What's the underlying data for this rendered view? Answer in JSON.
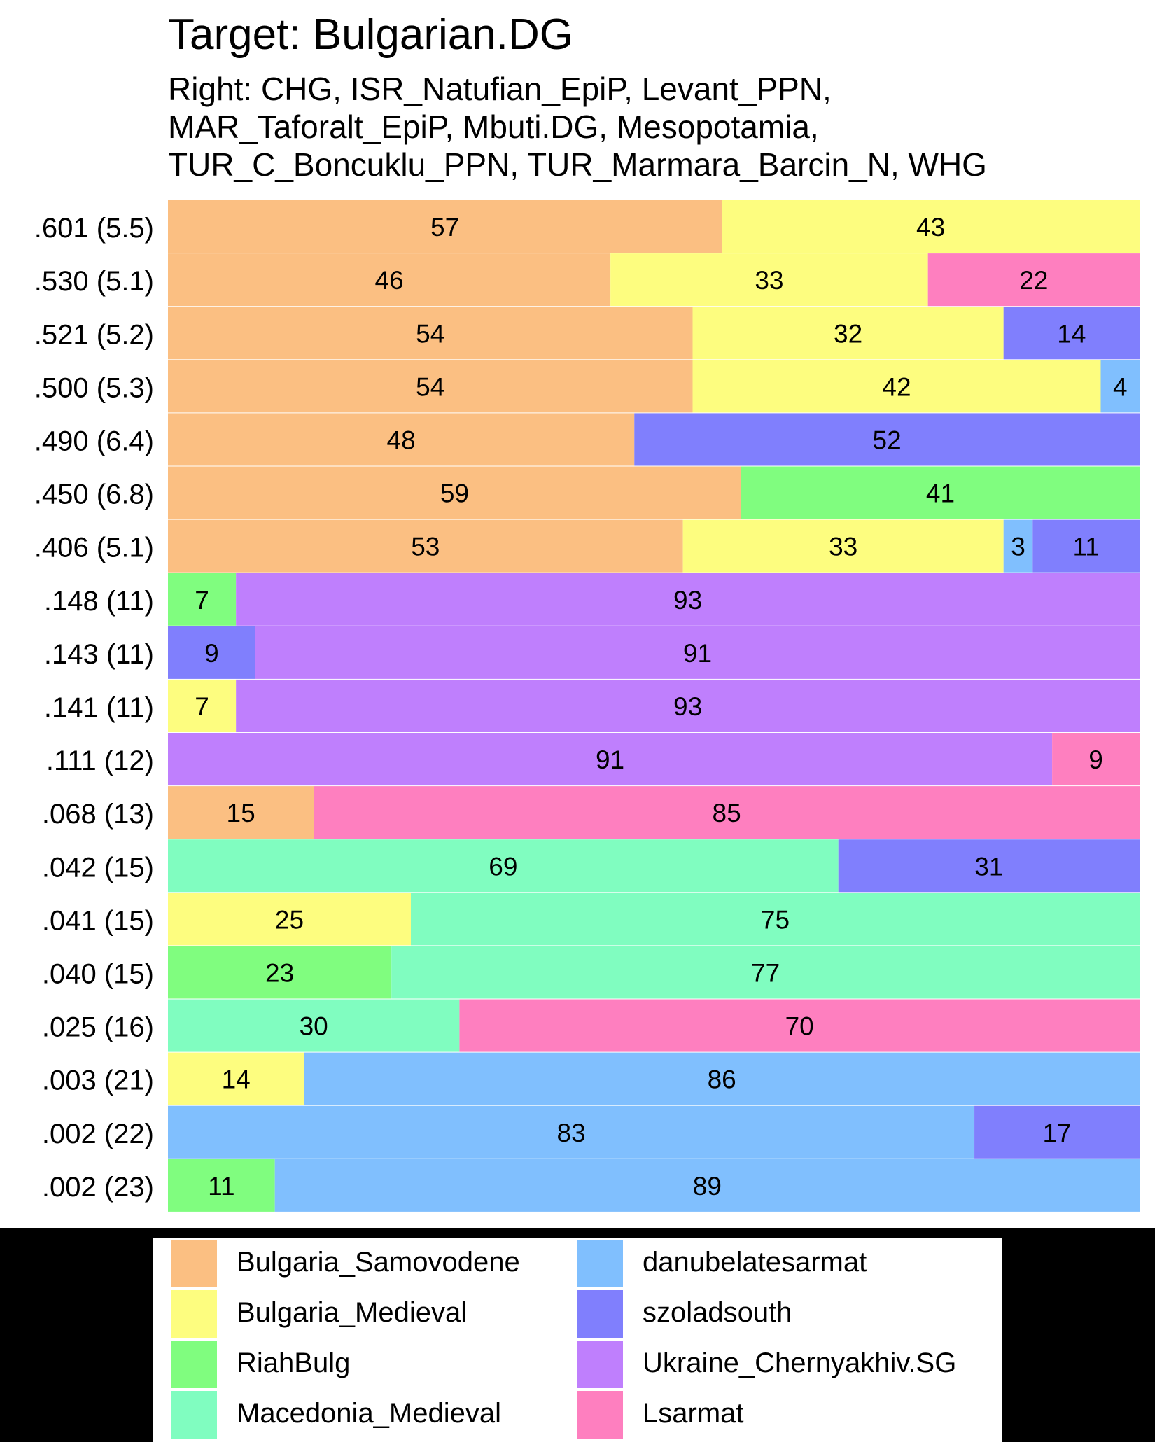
{
  "title": "Target: Bulgarian.DG",
  "subtitle_lines": [
    "Right: CHG, ISR_Natufian_EpiP, Levant_PPN,",
    "MAR_Taforalt_EpiP, Mbuti.DG, Mesopotamia,",
    "TUR_C_Boncuklu_PPN, TUR_Marmara_Barcin_N, WHG"
  ],
  "colors": {
    "Bulgaria_Samovodene": "#fbbf82",
    "Bulgaria_Medieval": "#fdfd7f",
    "RiahBulg": "#80fd7f",
    "Macedonia_Medieval": "#80fdc0",
    "danubelatesarmat": "#80bffe",
    "szoladsouth": "#807ffd",
    "Ukraine_Chernyakhiv.SG": "#bf7ffd",
    "Lsarmat": "#fe7fbf"
  },
  "chart_data": {
    "type": "bar",
    "orientation": "horizontal-stacked-100",
    "title": "Target: Bulgarian.DG",
    "subtitle": "Right: CHG, ISR_Natufian_EpiP, Levant_PPN, MAR_Taforalt_EpiP, Mbuti.DG, Mesopotamia, TUR_C_Boncuklu_PPN, TUR_Marmara_Barcin_N, WHG",
    "legend_position": "bottom",
    "legend": [
      "Bulgaria_Samovodene",
      "Bulgaria_Medieval",
      "RiahBulg",
      "Macedonia_Medieval",
      "danubelatesarmat",
      "szoladsouth",
      "Ukraine_Chernyakhiv.SG",
      "Lsarmat"
    ],
    "rows": [
      {
        "label": ".601 (5.5)",
        "segments": [
          {
            "source": "Bulgaria_Samovodene",
            "value": 57
          },
          {
            "source": "Bulgaria_Medieval",
            "value": 43
          }
        ]
      },
      {
        "label": ".530 (5.1)",
        "segments": [
          {
            "source": "Bulgaria_Samovodene",
            "value": 46
          },
          {
            "source": "Bulgaria_Medieval",
            "value": 33
          },
          {
            "source": "Lsarmat",
            "value": 22
          }
        ]
      },
      {
        "label": ".521 (5.2)",
        "segments": [
          {
            "source": "Bulgaria_Samovodene",
            "value": 54
          },
          {
            "source": "Bulgaria_Medieval",
            "value": 32
          },
          {
            "source": "szoladsouth",
            "value": 14
          }
        ]
      },
      {
        "label": ".500 (5.3)",
        "segments": [
          {
            "source": "Bulgaria_Samovodene",
            "value": 54
          },
          {
            "source": "Bulgaria_Medieval",
            "value": 42
          },
          {
            "source": "danubelatesarmat",
            "value": 4
          }
        ]
      },
      {
        "label": ".490 (6.4)",
        "segments": [
          {
            "source": "Bulgaria_Samovodene",
            "value": 48
          },
          {
            "source": "szoladsouth",
            "value": 52
          }
        ]
      },
      {
        "label": ".450 (6.8)",
        "segments": [
          {
            "source": "Bulgaria_Samovodene",
            "value": 59
          },
          {
            "source": "RiahBulg",
            "value": 41
          }
        ]
      },
      {
        "label": ".406 (5.1)",
        "segments": [
          {
            "source": "Bulgaria_Samovodene",
            "value": 53
          },
          {
            "source": "Bulgaria_Medieval",
            "value": 33
          },
          {
            "source": "danubelatesarmat",
            "value": 3
          },
          {
            "source": "szoladsouth",
            "value": 11
          }
        ]
      },
      {
        "label": ".148 (11)",
        "segments": [
          {
            "source": "RiahBulg",
            "value": 7
          },
          {
            "source": "Ukraine_Chernyakhiv.SG",
            "value": 93
          }
        ]
      },
      {
        "label": ".143 (11)",
        "segments": [
          {
            "source": "szoladsouth",
            "value": 9
          },
          {
            "source": "Ukraine_Chernyakhiv.SG",
            "value": 91
          }
        ]
      },
      {
        "label": ".141 (11)",
        "segments": [
          {
            "source": "Bulgaria_Medieval",
            "value": 7
          },
          {
            "source": "Ukraine_Chernyakhiv.SG",
            "value": 93
          }
        ]
      },
      {
        "label": ".111 (12)",
        "segments": [
          {
            "source": "Ukraine_Chernyakhiv.SG",
            "value": 91
          },
          {
            "source": "Lsarmat",
            "value": 9
          }
        ]
      },
      {
        "label": ".068 (13)",
        "segments": [
          {
            "source": "Bulgaria_Samovodene",
            "value": 15
          },
          {
            "source": "Lsarmat",
            "value": 85
          }
        ]
      },
      {
        "label": ".042 (15)",
        "segments": [
          {
            "source": "Macedonia_Medieval",
            "value": 69
          },
          {
            "source": "szoladsouth",
            "value": 31
          }
        ]
      },
      {
        "label": ".041 (15)",
        "segments": [
          {
            "source": "Bulgaria_Medieval",
            "value": 25
          },
          {
            "source": "Macedonia_Medieval",
            "value": 75
          }
        ]
      },
      {
        "label": ".040 (15)",
        "segments": [
          {
            "source": "RiahBulg",
            "value": 23
          },
          {
            "source": "Macedonia_Medieval",
            "value": 77
          }
        ]
      },
      {
        "label": ".025 (16)",
        "segments": [
          {
            "source": "Macedonia_Medieval",
            "value": 30
          },
          {
            "source": "Lsarmat",
            "value": 70
          }
        ]
      },
      {
        "label": ".003 (21)",
        "segments": [
          {
            "source": "Bulgaria_Medieval",
            "value": 14
          },
          {
            "source": "danubelatesarmat",
            "value": 86
          }
        ]
      },
      {
        "label": ".002 (22)",
        "segments": [
          {
            "source": "danubelatesarmat",
            "value": 83
          },
          {
            "source": "szoladsouth",
            "value": 17
          }
        ]
      },
      {
        "label": ".002 (23)",
        "segments": [
          {
            "source": "RiahBulg",
            "value": 11
          },
          {
            "source": "danubelatesarmat",
            "value": 89
          }
        ]
      }
    ]
  }
}
